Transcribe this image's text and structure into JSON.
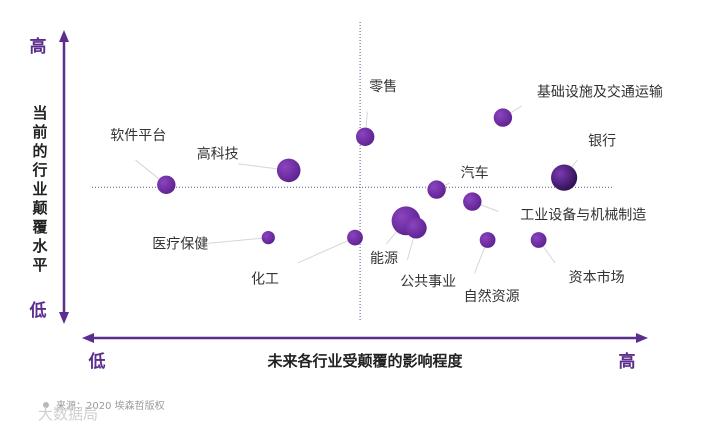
{
  "chart_data": {
    "type": "scatter",
    "title": "",
    "xlabel": "未来各行业受颠覆的影响程度",
    "ylabel": "当前的行业颠覆水平",
    "x_low": "低",
    "x_high": "高",
    "y_low": "低",
    "y_high": "高",
    "xlim": [
      0,
      10
    ],
    "ylim": [
      0,
      10
    ],
    "x_divider": 5.1,
    "y_divider": 4.7,
    "points": [
      {
        "label": "软件平台",
        "x": 1.3,
        "y": 4.8,
        "size": 2
      },
      {
        "label": "高科技",
        "x": 3.7,
        "y": 5.4,
        "size": 3
      },
      {
        "label": "医疗保健",
        "x": 3.3,
        "y": 2.6,
        "size": 1
      },
      {
        "label": "化工",
        "x": 5.0,
        "y": 2.6,
        "size": 1.5
      },
      {
        "label": "零售",
        "x": 5.2,
        "y": 6.8,
        "size": 2
      },
      {
        "label": "能源",
        "x": 6.0,
        "y": 3.3,
        "size": 4
      },
      {
        "label": "公共事业",
        "x": 6.2,
        "y": 3.0,
        "size": 2.5
      },
      {
        "label": "汽车",
        "x": 6.6,
        "y": 4.6,
        "size": 2
      },
      {
        "label": "工业设备与机械制造",
        "x": 7.3,
        "y": 4.1,
        "size": 2
      },
      {
        "label": "自然资源",
        "x": 7.6,
        "y": 2.5,
        "size": 1.5
      },
      {
        "label": "基础设施及交通运输",
        "x": 7.9,
        "y": 7.6,
        "size": 2
      },
      {
        "label": "资本市场",
        "x": 8.6,
        "y": 2.5,
        "size": 1.5
      },
      {
        "label": "银行",
        "x": 9.1,
        "y": 5.1,
        "size": 3.5
      }
    ]
  },
  "footer": {
    "source": "来源：2020 埃森哲版权",
    "watermark": "大数据局"
  },
  "colors": {
    "accent": "#6a2c9c",
    "axis": "#5b2d8e"
  }
}
